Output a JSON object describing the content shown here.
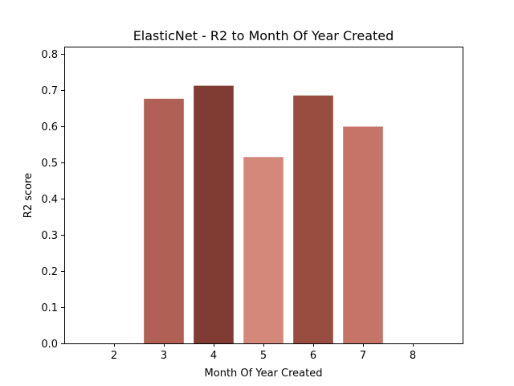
{
  "chart_data": {
    "type": "bar",
    "title": "ElasticNet - R2 to Month Of Year Created",
    "xlabel": "Month Of Year Created",
    "ylabel": "R2 score",
    "categories": [
      "2",
      "3",
      "4",
      "5",
      "6",
      "7",
      "8"
    ],
    "x": [
      2,
      3,
      4,
      5,
      6,
      7,
      8
    ],
    "values": [
      0,
      0.676,
      0.712,
      0.515,
      0.685,
      0.599,
      0
    ],
    "colors": [
      "#B06054",
      "#B06054",
      "#803C33",
      "#D4887A",
      "#994D40",
      "#C67467",
      "#B06054"
    ],
    "xlim": [
      1,
      9
    ],
    "ylim": [
      0,
      0.82
    ],
    "yticks": [
      0.0,
      0.1,
      0.2,
      0.3,
      0.4,
      0.5,
      0.6,
      0.7,
      0.8
    ],
    "ytick_labels": [
      "0.0",
      "0.1",
      "0.2",
      "0.3",
      "0.4",
      "0.5",
      "0.6",
      "0.7",
      "0.8"
    ],
    "grid": false,
    "legend": "none"
  }
}
